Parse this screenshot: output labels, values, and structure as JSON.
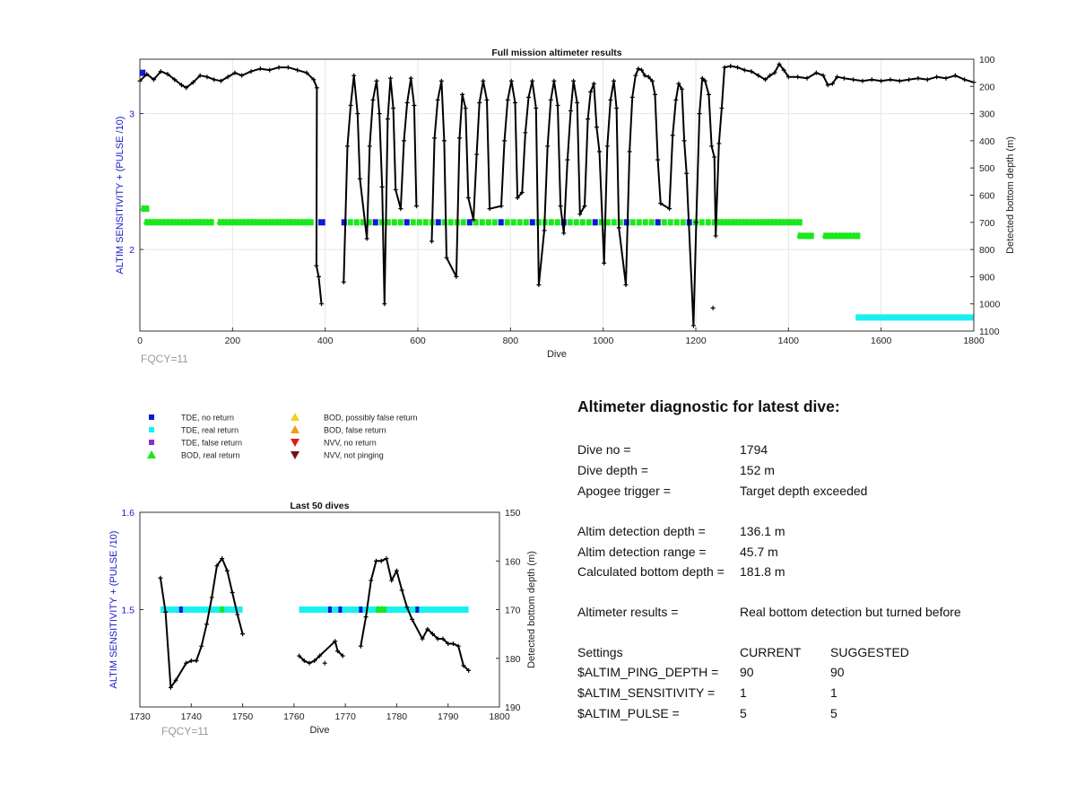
{
  "colors": {
    "tde_no_return": "#0a1ad6",
    "tde_real_return": "#19f0f0",
    "tde_false_return": "#8c2fd0",
    "bod_real_return": "#1ae81a",
    "bod_possibly_false": "#f5d21a",
    "bod_false_return": "#f59a1a",
    "nvv_no_return": "#e01a1a",
    "nvv_not_pinging": "#7a1010",
    "trace": "#000000",
    "left_axis": "#1a1ac8",
    "annotation": "#999999"
  },
  "legend": {
    "items": [
      {
        "label": "TDE, no return",
        "symbol": "square",
        "color": "#0a1ad6"
      },
      {
        "label": "TDE, real return",
        "symbol": "square",
        "color": "#19f0f0"
      },
      {
        "label": "TDE, false return",
        "symbol": "square",
        "color": "#8c2fd0"
      },
      {
        "label": "BOD, real return",
        "symbol": "triangle-up",
        "color": "#1ae81a"
      },
      {
        "label": "BOD, possibly false return",
        "symbol": "triangle-up",
        "color": "#f5d21a"
      },
      {
        "label": "BOD, false return",
        "symbol": "triangle-up",
        "color": "#f59a1a"
      },
      {
        "label": "NVV, no return",
        "symbol": "triangle-down",
        "color": "#e01a1a"
      },
      {
        "label": "NVV, not pinging",
        "symbol": "triangle-down",
        "color": "#7a1010"
      }
    ]
  },
  "chart_data": [
    {
      "type": "line",
      "title": "Full mission altimeter results",
      "xlabel": "Dive",
      "ylabel_left": "ALTIM SENSITIVITY + (PULSE /10)",
      "ylabel_right": "Detected bottom depth (m)",
      "annotation": "FQCY=11",
      "xlim": [
        0,
        1800
      ],
      "ylim_left": [
        1.4,
        3.4
      ],
      "ylim_right": [
        1100,
        100
      ],
      "x_ticks": [
        0,
        200,
        400,
        600,
        800,
        1000,
        1200,
        1400,
        1600,
        1800
      ],
      "y_ticks_left": [
        2,
        3
      ],
      "y_ticks_right": [
        100,
        200,
        300,
        400,
        500,
        600,
        700,
        800,
        900,
        1000,
        1100
      ],
      "grid": true,
      "bottom_depth_trace": [
        [
          0,
          180
        ],
        [
          15,
          155
        ],
        [
          30,
          175
        ],
        [
          45,
          145
        ],
        [
          60,
          155
        ],
        [
          75,
          175
        ],
        [
          90,
          195
        ],
        [
          100,
          205
        ],
        [
          115,
          185
        ],
        [
          130,
          160
        ],
        [
          145,
          165
        ],
        [
          160,
          175
        ],
        [
          175,
          180
        ],
        [
          190,
          165
        ],
        [
          205,
          150
        ],
        [
          220,
          160
        ],
        [
          240,
          145
        ],
        [
          260,
          135
        ],
        [
          280,
          140
        ],
        [
          300,
          130
        ],
        [
          320,
          130
        ],
        [
          340,
          140
        ],
        [
          360,
          150
        ],
        [
          375,
          175
        ],
        [
          382,
          205
        ],
        [
          381,
          860
        ],
        [
          386,
          900
        ],
        [
          392,
          1000
        ],
        [
          440,
          920
        ],
        [
          448,
          420
        ],
        [
          455,
          270
        ],
        [
          462,
          160
        ],
        [
          470,
          300
        ],
        [
          475,
          540
        ],
        [
          490,
          760
        ],
        [
          496,
          420
        ],
        [
          503,
          250
        ],
        [
          511,
          180
        ],
        [
          517,
          300
        ],
        [
          523,
          570
        ],
        [
          528,
          1000
        ],
        [
          535,
          320
        ],
        [
          541,
          170
        ],
        [
          547,
          280
        ],
        [
          552,
          580
        ],
        [
          563,
          650
        ],
        [
          570,
          400
        ],
        [
          577,
          260
        ],
        [
          585,
          170
        ],
        [
          592,
          270
        ],
        [
          597,
          640
        ],
        [
          630,
          770
        ],
        [
          636,
          390
        ],
        [
          643,
          250
        ],
        [
          651,
          180
        ],
        [
          657,
          400
        ],
        [
          662,
          830
        ],
        [
          683,
          900
        ],
        [
          690,
          390
        ],
        [
          696,
          230
        ],
        [
          703,
          280
        ],
        [
          709,
          610
        ],
        [
          720,
          690
        ],
        [
          727,
          450
        ],
        [
          733,
          260
        ],
        [
          741,
          180
        ],
        [
          749,
          250
        ],
        [
          755,
          650
        ],
        [
          780,
          640
        ],
        [
          787,
          400
        ],
        [
          794,
          250
        ],
        [
          802,
          180
        ],
        [
          810,
          260
        ],
        [
          815,
          610
        ],
        [
          825,
          590
        ],
        [
          832,
          370
        ],
        [
          839,
          240
        ],
        [
          847,
          180
        ],
        [
          855,
          280
        ],
        [
          861,
          930
        ],
        [
          873,
          730
        ],
        [
          880,
          420
        ],
        [
          887,
          250
        ],
        [
          894,
          180
        ],
        [
          902,
          270
        ],
        [
          908,
          640
        ],
        [
          915,
          740
        ],
        [
          923,
          470
        ],
        [
          930,
          290
        ],
        [
          936,
          180
        ],
        [
          944,
          260
        ],
        [
          950,
          670
        ],
        [
          960,
          640
        ],
        [
          967,
          320
        ],
        [
          973,
          220
        ],
        [
          980,
          190
        ],
        [
          986,
          350
        ],
        [
          992,
          440
        ],
        [
          1002,
          850
        ],
        [
          1009,
          420
        ],
        [
          1016,
          250
        ],
        [
          1023,
          180
        ],
        [
          1029,
          280
        ],
        [
          1034,
          720
        ],
        [
          1049,
          930
        ],
        [
          1057,
          440
        ],
        [
          1063,
          240
        ],
        [
          1070,
          160
        ],
        [
          1076,
          135
        ],
        [
          1083,
          140
        ],
        [
          1090,
          160
        ],
        [
          1098,
          165
        ],
        [
          1106,
          180
        ],
        [
          1112,
          230
        ],
        [
          1118,
          470
        ],
        [
          1124,
          630
        ],
        [
          1143,
          650
        ],
        [
          1150,
          380
        ],
        [
          1157,
          250
        ],
        [
          1163,
          190
        ],
        [
          1170,
          210
        ],
        [
          1175,
          400
        ],
        [
          1180,
          520
        ],
        [
          1195,
          1080
        ],
        [
          1201,
          700
        ],
        [
          1208,
          300
        ],
        [
          1214,
          170
        ],
        [
          1220,
          180
        ],
        [
          1228,
          230
        ],
        [
          1234,
          420
        ],
        [
          1240,
          460
        ],
        [
          1243,
          750
        ],
        [
          1250,
          410
        ],
        [
          1256,
          280
        ],
        [
          1262,
          130
        ],
        [
          1275,
          125
        ],
        [
          1290,
          130
        ],
        [
          1305,
          140
        ],
        [
          1320,
          145
        ],
        [
          1335,
          160
        ],
        [
          1350,
          175
        ],
        [
          1360,
          160
        ],
        [
          1370,
          150
        ],
        [
          1380,
          118
        ],
        [
          1390,
          140
        ],
        [
          1400,
          165
        ],
        [
          1420,
          165
        ],
        [
          1440,
          170
        ],
        [
          1460,
          150
        ],
        [
          1475,
          160
        ],
        [
          1485,
          195
        ],
        [
          1495,
          190
        ],
        [
          1505,
          165
        ],
        [
          1520,
          170
        ],
        [
          1540,
          175
        ],
        [
          1560,
          180
        ],
        [
          1580,
          175
        ],
        [
          1600,
          180
        ],
        [
          1620,
          175
        ],
        [
          1640,
          180
        ],
        [
          1660,
          175
        ],
        [
          1680,
          170
        ],
        [
          1700,
          175
        ],
        [
          1720,
          165
        ],
        [
          1740,
          170
        ],
        [
          1760,
          160
        ],
        [
          1780,
          175
        ],
        [
          1800,
          185
        ]
      ],
      "isolated_points": [
        [
          1237,
          1015
        ]
      ],
      "altimeter_segments": [
        {
          "category": "bod_real_return",
          "x_start": 10,
          "x_end": 160,
          "y": 2.2
        },
        {
          "category": "bod_real_return",
          "x_start": 168,
          "x_end": 375,
          "y": 2.2
        },
        {
          "category": "bod_real_return",
          "x_start": 3,
          "x_end": 20,
          "y": 2.3
        },
        {
          "category": "tde_no_return",
          "x_start": 385,
          "x_end": 400,
          "y": 2.2
        },
        {
          "category": "mixed_tde_bod",
          "x_start": 435,
          "x_end": 1245,
          "y": 2.2
        },
        {
          "category": "bod_real_return",
          "x_start": 1245,
          "x_end": 1430,
          "y": 2.2
        },
        {
          "category": "bod_real_return",
          "x_start": 1420,
          "x_end": 1455,
          "y": 2.1
        },
        {
          "category": "bod_real_return",
          "x_start": 1475,
          "x_end": 1555,
          "y": 2.1
        },
        {
          "category": "tde_real_return",
          "x_start": 1545,
          "x_end": 1800,
          "y": 1.5
        },
        {
          "category": "tde_no_return",
          "x_start": 0,
          "x_end": 12,
          "y": 3.3
        }
      ]
    },
    {
      "type": "line",
      "title": "Last 50 dives",
      "xlabel": "Dive",
      "ylabel_left": "ALTIM SENSITIVITY + (PULSE /10)",
      "ylabel_right": "Detected bottom depth (m)",
      "annotation": "FQCY=11",
      "xlim": [
        1730,
        1800
      ],
      "ylim_left": [
        1.4,
        1.6
      ],
      "ylim_right": [
        190,
        150
      ],
      "x_ticks": [
        1730,
        1740,
        1750,
        1760,
        1770,
        1780,
        1790,
        1800
      ],
      "y_ticks_left": [
        1.5,
        1.6
      ],
      "y_ticks_right": [
        150,
        160,
        170,
        180,
        190
      ],
      "grid": false,
      "bottom_depth_trace": [
        [
          1734,
          163.5
        ],
        [
          1735,
          170.5
        ],
        [
          1736,
          186
        ],
        [
          1737,
          184.5
        ],
        [
          1739,
          181
        ],
        [
          1740,
          180.5
        ],
        [
          1741,
          180.5
        ],
        [
          1742,
          177.5
        ],
        [
          1743,
          173
        ],
        [
          1744,
          167.5
        ],
        [
          1745,
          161
        ],
        [
          1746,
          159.5
        ],
        [
          1747,
          162
        ],
        [
          1748,
          166.5
        ],
        [
          1749,
          171
        ],
        [
          1750,
          175
        ],
        [
          1761,
          179.5
        ],
        [
          1762,
          180.5
        ],
        [
          1763,
          181
        ],
        [
          1764,
          180.5
        ],
        [
          1765,
          179.5
        ],
        [
          1768,
          176.5
        ],
        [
          1768.5,
          178.5
        ],
        [
          1769.5,
          179.5
        ],
        [
          1773,
          177.5
        ],
        [
          1774,
          171.5
        ],
        [
          1775,
          164
        ],
        [
          1776,
          160
        ],
        [
          1777,
          160
        ],
        [
          1778,
          159.5
        ],
        [
          1779,
          164
        ],
        [
          1780,
          162
        ],
        [
          1781,
          166
        ],
        [
          1782,
          169.5
        ],
        [
          1783,
          172
        ],
        [
          1785,
          176
        ],
        [
          1786,
          174
        ],
        [
          1787,
          175
        ],
        [
          1788,
          176
        ],
        [
          1789,
          176
        ],
        [
          1790,
          177
        ],
        [
          1791,
          177
        ],
        [
          1792,
          177.5
        ],
        [
          1793,
          181.5
        ],
        [
          1794,
          182.5
        ]
      ],
      "isolated_points": [
        [
          1766,
          181
        ]
      ],
      "altimeter_segments": [
        {
          "category": "tde_real_return",
          "x_start": 1734,
          "x_end": 1750,
          "y": 1.5
        },
        {
          "category": "tde_real_return",
          "x_start": 1761,
          "x_end": 1794,
          "y": 1.5
        },
        {
          "category": "tde_no_return",
          "x_start": 1738,
          "x_end": 1738,
          "y": 1.5
        },
        {
          "category": "tde_no_return",
          "x_start": 1767,
          "x_end": 1767,
          "y": 1.5
        },
        {
          "category": "tde_no_return",
          "x_start": 1769,
          "x_end": 1769,
          "y": 1.5
        },
        {
          "category": "tde_no_return",
          "x_start": 1773,
          "x_end": 1773,
          "y": 1.5
        },
        {
          "category": "tde_no_return",
          "x_start": 1784,
          "x_end": 1784,
          "y": 1.5
        },
        {
          "category": "bod_real_return",
          "x_start": 1746,
          "x_end": 1746,
          "y": 1.5
        },
        {
          "category": "bod_real_return",
          "x_start": 1776,
          "x_end": 1778,
          "y": 1.5
        }
      ]
    }
  ],
  "diagnostic": {
    "title": "Altimeter diagnostic for latest dive:",
    "dive_no_label": "Dive no =",
    "dive_no_value": "1794",
    "dive_depth_label": "Dive depth =",
    "dive_depth_value": "152 m",
    "apogee_label": "Apogee trigger =",
    "apogee_value": "Target depth exceeded",
    "detection_depth_label": "Altim detection depth =",
    "detection_depth_value": "136.1 m",
    "detection_range_label": "Altim detection range =",
    "detection_range_value": "45.7 m",
    "bottom_depth_label": "Calculated bottom depth =",
    "bottom_depth_value": "181.8 m",
    "results_label": "Altimeter results =",
    "results_value": "Real bottom detection but turned before",
    "settings_header": "Settings",
    "current_header": "CURRENT",
    "suggested_header": "SUGGESTED",
    "settings": [
      {
        "name": "$ALTIM_PING_DEPTH =",
        "current": "90",
        "suggested": "90"
      },
      {
        "name": "$ALTIM_SENSITIVITY =",
        "current": "1",
        "suggested": "1"
      },
      {
        "name": "$ALTIM_PULSE =",
        "current": "5",
        "suggested": "5"
      }
    ]
  }
}
